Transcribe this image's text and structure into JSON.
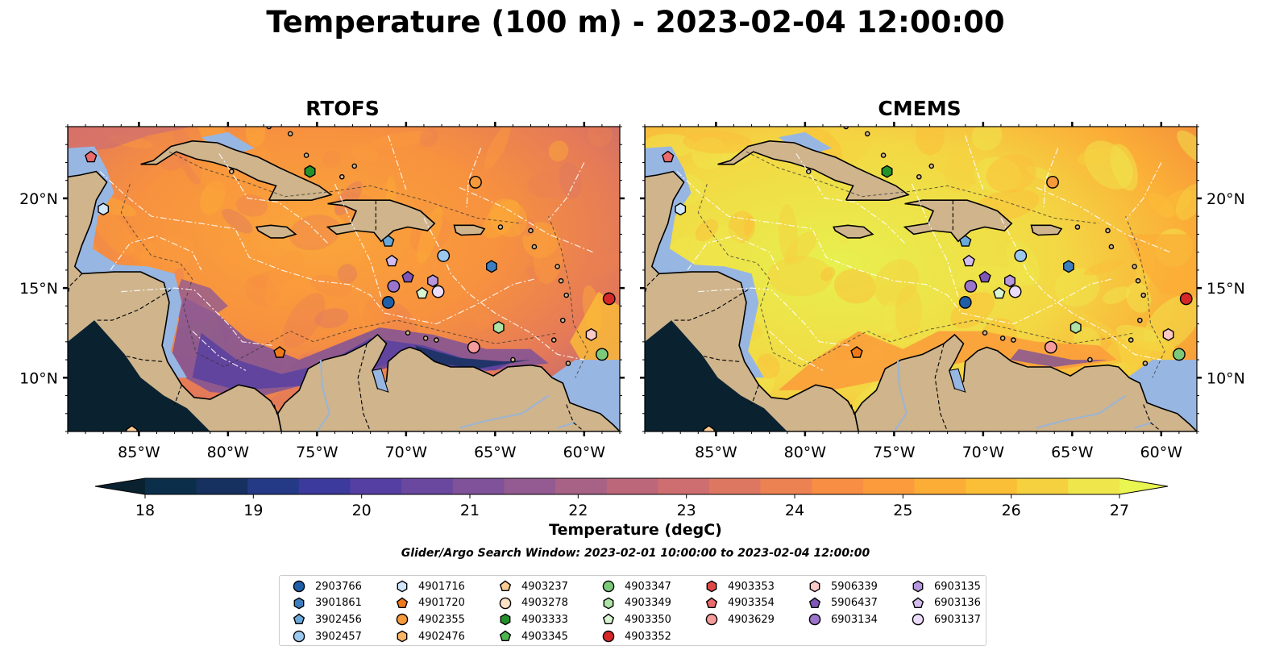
{
  "title": "Temperature (100 m) - 2023-02-04 12:00:00",
  "panels": [
    {
      "name": "RTOFS",
      "palette": "rtofs"
    },
    {
      "name": "CMEMS",
      "palette": "cmems"
    }
  ],
  "axes": {
    "lon_ticks": [
      "85°W",
      "80°W",
      "75°W",
      "70°W",
      "65°W",
      "60°W"
    ],
    "lat_ticks": [
      "20°N",
      "15°N",
      "10°N"
    ],
    "lon_range": [
      -89,
      -58
    ],
    "lat_range": [
      7,
      24
    ]
  },
  "colorbar": {
    "label": "Temperature (degC)",
    "ticks": [
      "18",
      "19",
      "20",
      "21",
      "22",
      "23",
      "24",
      "25",
      "26",
      "27"
    ],
    "range": [
      18,
      27
    ],
    "colors": [
      "#0b2f4a",
      "#16315f",
      "#253a86",
      "#3c3a9c",
      "#553fa3",
      "#6b489f",
      "#7f5299",
      "#935b91",
      "#a86286",
      "#bd677b",
      "#cf6e70",
      "#de7762",
      "#ec8152",
      "#f78e43",
      "#fb9b3b",
      "#fcad36",
      "#fbbe37",
      "#f6d13f",
      "#efe64c"
    ],
    "under_color": "#0a2230",
    "over_color": "#e9f550"
  },
  "colors": {
    "land": "#cfb48c",
    "water": "#98b6e2",
    "deep_land": "#0a2230"
  },
  "search_window": "Glider/Argo Search Window: 2023-02-01 10:00:00 to 2023-02-04 12:00:00",
  "floats": [
    {
      "id": "2903766",
      "marker": "circle",
      "color": "#1f5fa8"
    },
    {
      "id": "3901861",
      "marker": "hexagon",
      "color": "#3c7fc0"
    },
    {
      "id": "3902456",
      "marker": "pentagon",
      "color": "#6aa9dc"
    },
    {
      "id": "3902457",
      "marker": "circle",
      "color": "#9cc8ee"
    },
    {
      "id": "4901716",
      "marker": "hexagon",
      "color": "#cfe6fb"
    },
    {
      "id": "4901720",
      "marker": "pentagon",
      "color": "#f07a1a"
    },
    {
      "id": "4902355",
      "marker": "circle",
      "color": "#f79a3c"
    },
    {
      "id": "4902476",
      "marker": "hexagon",
      "color": "#fab565"
    },
    {
      "id": "4903237",
      "marker": "pentagon",
      "color": "#fcca94"
    },
    {
      "id": "4903278",
      "marker": "circle",
      "color": "#fde2c6"
    },
    {
      "id": "4903333",
      "marker": "hexagon",
      "color": "#23922b"
    },
    {
      "id": "4903345",
      "marker": "pentagon",
      "color": "#4cb54f"
    },
    {
      "id": "4903347",
      "marker": "circle",
      "color": "#7cc97a"
    },
    {
      "id": "4903349",
      "marker": "hexagon",
      "color": "#aee2a6"
    },
    {
      "id": "4903350",
      "marker": "pentagon",
      "color": "#d9f5d2"
    },
    {
      "id": "4903352",
      "marker": "circle",
      "color": "#d62728"
    },
    {
      "id": "4903353",
      "marker": "hexagon",
      "color": "#e04848"
    },
    {
      "id": "4903354",
      "marker": "pentagon",
      "color": "#ec6a6c"
    },
    {
      "id": "4903629",
      "marker": "circle",
      "color": "#f59b9b"
    },
    {
      "id": "5906339",
      "marker": "hexagon",
      "color": "#fbc9c6"
    },
    {
      "id": "5906437",
      "marker": "pentagon",
      "color": "#7e56b8"
    },
    {
      "id": "6903134",
      "marker": "circle",
      "color": "#9b74cc"
    },
    {
      "id": "6903135",
      "marker": "hexagon",
      "color": "#b697dd"
    },
    {
      "id": "6903136",
      "marker": "pentagon",
      "color": "#d3bdef"
    },
    {
      "id": "6903137",
      "marker": "circle",
      "color": "#ecdcfb"
    }
  ],
  "float_positions": [
    {
      "id": "4903354",
      "lon": -87.7,
      "lat": 22.3
    },
    {
      "id": "4903333",
      "lon": -75.4,
      "lat": 21.5
    },
    {
      "id": "4902355",
      "lon": -66.1,
      "lat": 20.9
    },
    {
      "id": "4901716",
      "lon": -87.0,
      "lat": 19.4
    },
    {
      "id": "3902456",
      "lon": -71.0,
      "lat": 17.6
    },
    {
      "id": "3902457",
      "lon": -67.9,
      "lat": 16.8
    },
    {
      "id": "6903136",
      "lon": -70.8,
      "lat": 16.5
    },
    {
      "id": "3901861",
      "lon": -65.2,
      "lat": 16.2
    },
    {
      "id": "5906437",
      "lon": -69.9,
      "lat": 15.6
    },
    {
      "id": "6903135",
      "lon": -68.5,
      "lat": 15.4
    },
    {
      "id": "6903134",
      "lon": -70.7,
      "lat": 15.1
    },
    {
      "id": "6903137",
      "lon": -68.2,
      "lat": 14.8
    },
    {
      "id": "4903350",
      "lon": -69.1,
      "lat": 14.7
    },
    {
      "id": "2903766",
      "lon": -71.0,
      "lat": 14.2
    },
    {
      "id": "4903352",
      "lon": -58.6,
      "lat": 14.4
    },
    {
      "id": "4903349",
      "lon": -64.8,
      "lat": 12.8
    },
    {
      "id": "5906339",
      "lon": -59.6,
      "lat": 12.4
    },
    {
      "id": "4903629",
      "lon": -66.2,
      "lat": 11.7
    },
    {
      "id": "4901720",
      "lon": -77.1,
      "lat": 11.4
    },
    {
      "id": "4903347",
      "lon": -59.0,
      "lat": 11.3
    },
    {
      "id": "4903237",
      "lon": -85.4,
      "lat": 7.0
    }
  ]
}
